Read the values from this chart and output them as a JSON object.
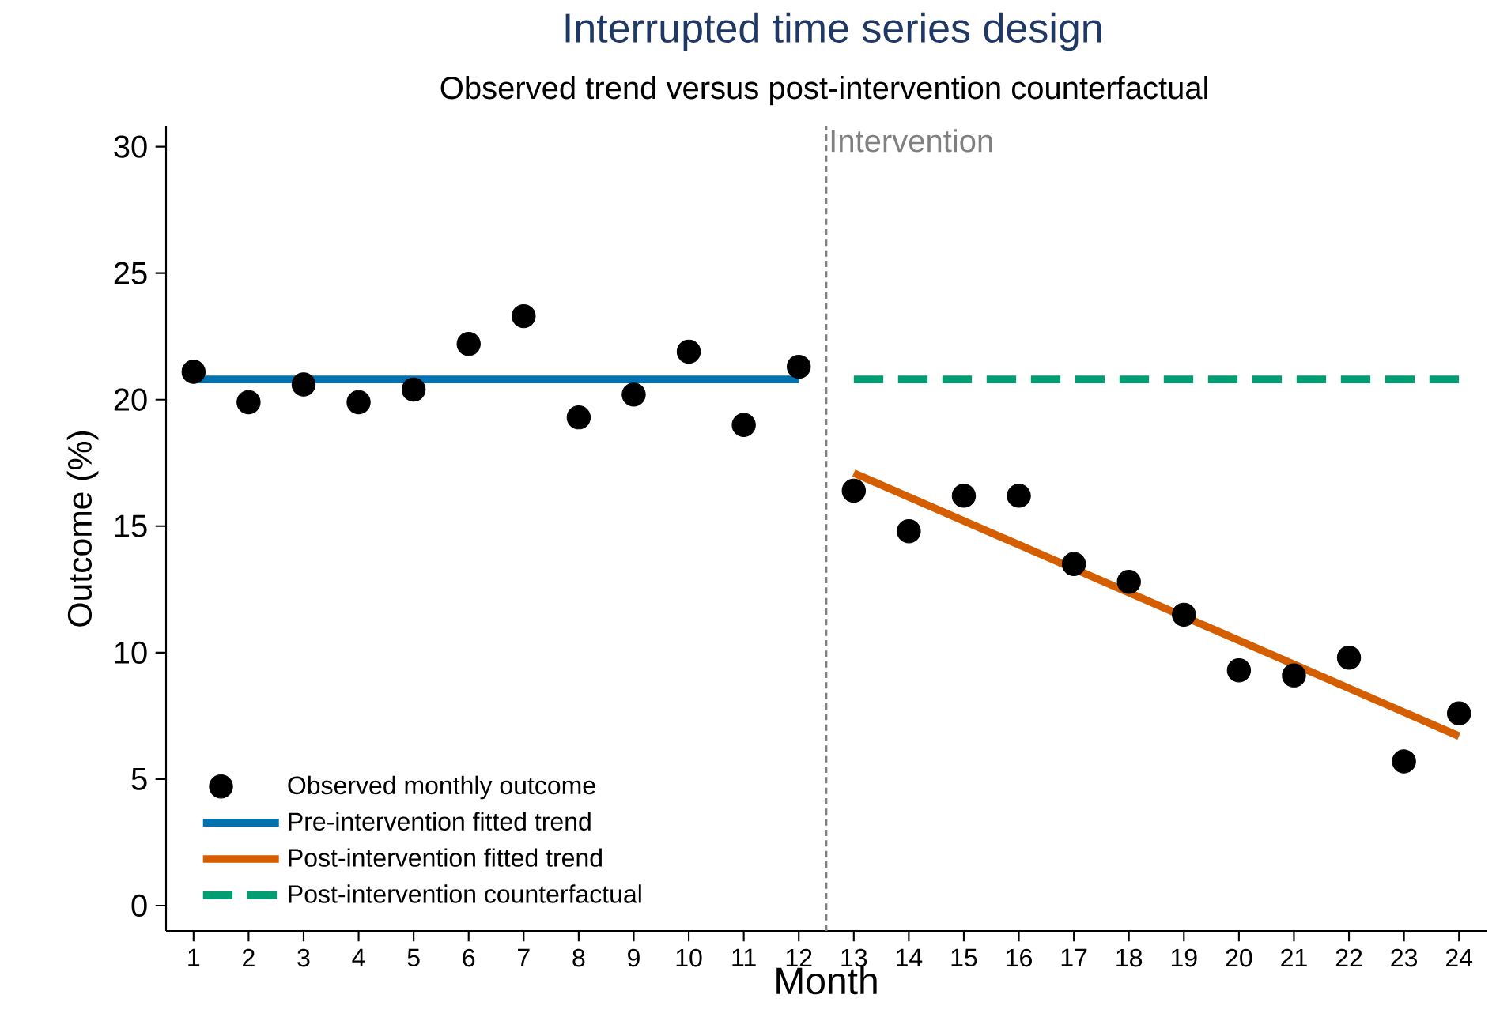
{
  "chart_data": {
    "type": "line",
    "title": "Interrupted time series design",
    "subtitle": "Observed trend versus post-intervention counterfactual",
    "xlabel": "Month",
    "ylabel": "Outcome (%)",
    "series": [
      {
        "name": "Observed monthly outcome",
        "type": "scatter",
        "color": "#000000",
        "marker": "circle",
        "x": [
          1,
          2,
          3,
          4,
          5,
          6,
          7,
          8,
          9,
          10,
          11,
          12,
          13,
          14,
          15,
          16,
          17,
          18,
          19,
          20,
          21,
          22,
          23,
          24
        ],
        "values": [
          21.1,
          19.9,
          20.6,
          19.9,
          20.4,
          22.2,
          23.3,
          19.3,
          20.2,
          21.9,
          19.0,
          21.3,
          16.4,
          14.8,
          16.2,
          16.2,
          13.5,
          12.8,
          11.5,
          9.3,
          9.1,
          9.8,
          5.7,
          7.6
        ]
      },
      {
        "name": "Pre-intervention fitted trend",
        "color": "#0072b2",
        "x": [
          1,
          12
        ],
        "values": [
          20.8,
          20.8
        ]
      },
      {
        "name": "Post-intervention fitted trend",
        "color": "#d55e00",
        "x": [
          13,
          24
        ],
        "values": [
          17.1,
          6.7
        ]
      },
      {
        "name": "Post-intervention counterfactual",
        "color": "#009e73",
        "line_style": "dashed",
        "x": [
          13,
          24
        ],
        "values": [
          20.8,
          20.8
        ]
      }
    ],
    "ref_lines": [
      {
        "axis": "x",
        "value": 12.5,
        "label": "Intervention",
        "color": "#808080",
        "line_style": "dashed"
      }
    ],
    "xlim": [
      0.5,
      24.5
    ],
    "ylim": [
      -1,
      30.8
    ],
    "xticks": [
      1,
      2,
      3,
      4,
      5,
      6,
      7,
      8,
      9,
      10,
      11,
      12,
      13,
      14,
      15,
      16,
      17,
      18,
      19,
      20,
      21,
      22,
      23,
      24
    ],
    "yticks": [
      0,
      5,
      10,
      15,
      20,
      25,
      30
    ],
    "grid": false,
    "legend": "bottom left"
  }
}
